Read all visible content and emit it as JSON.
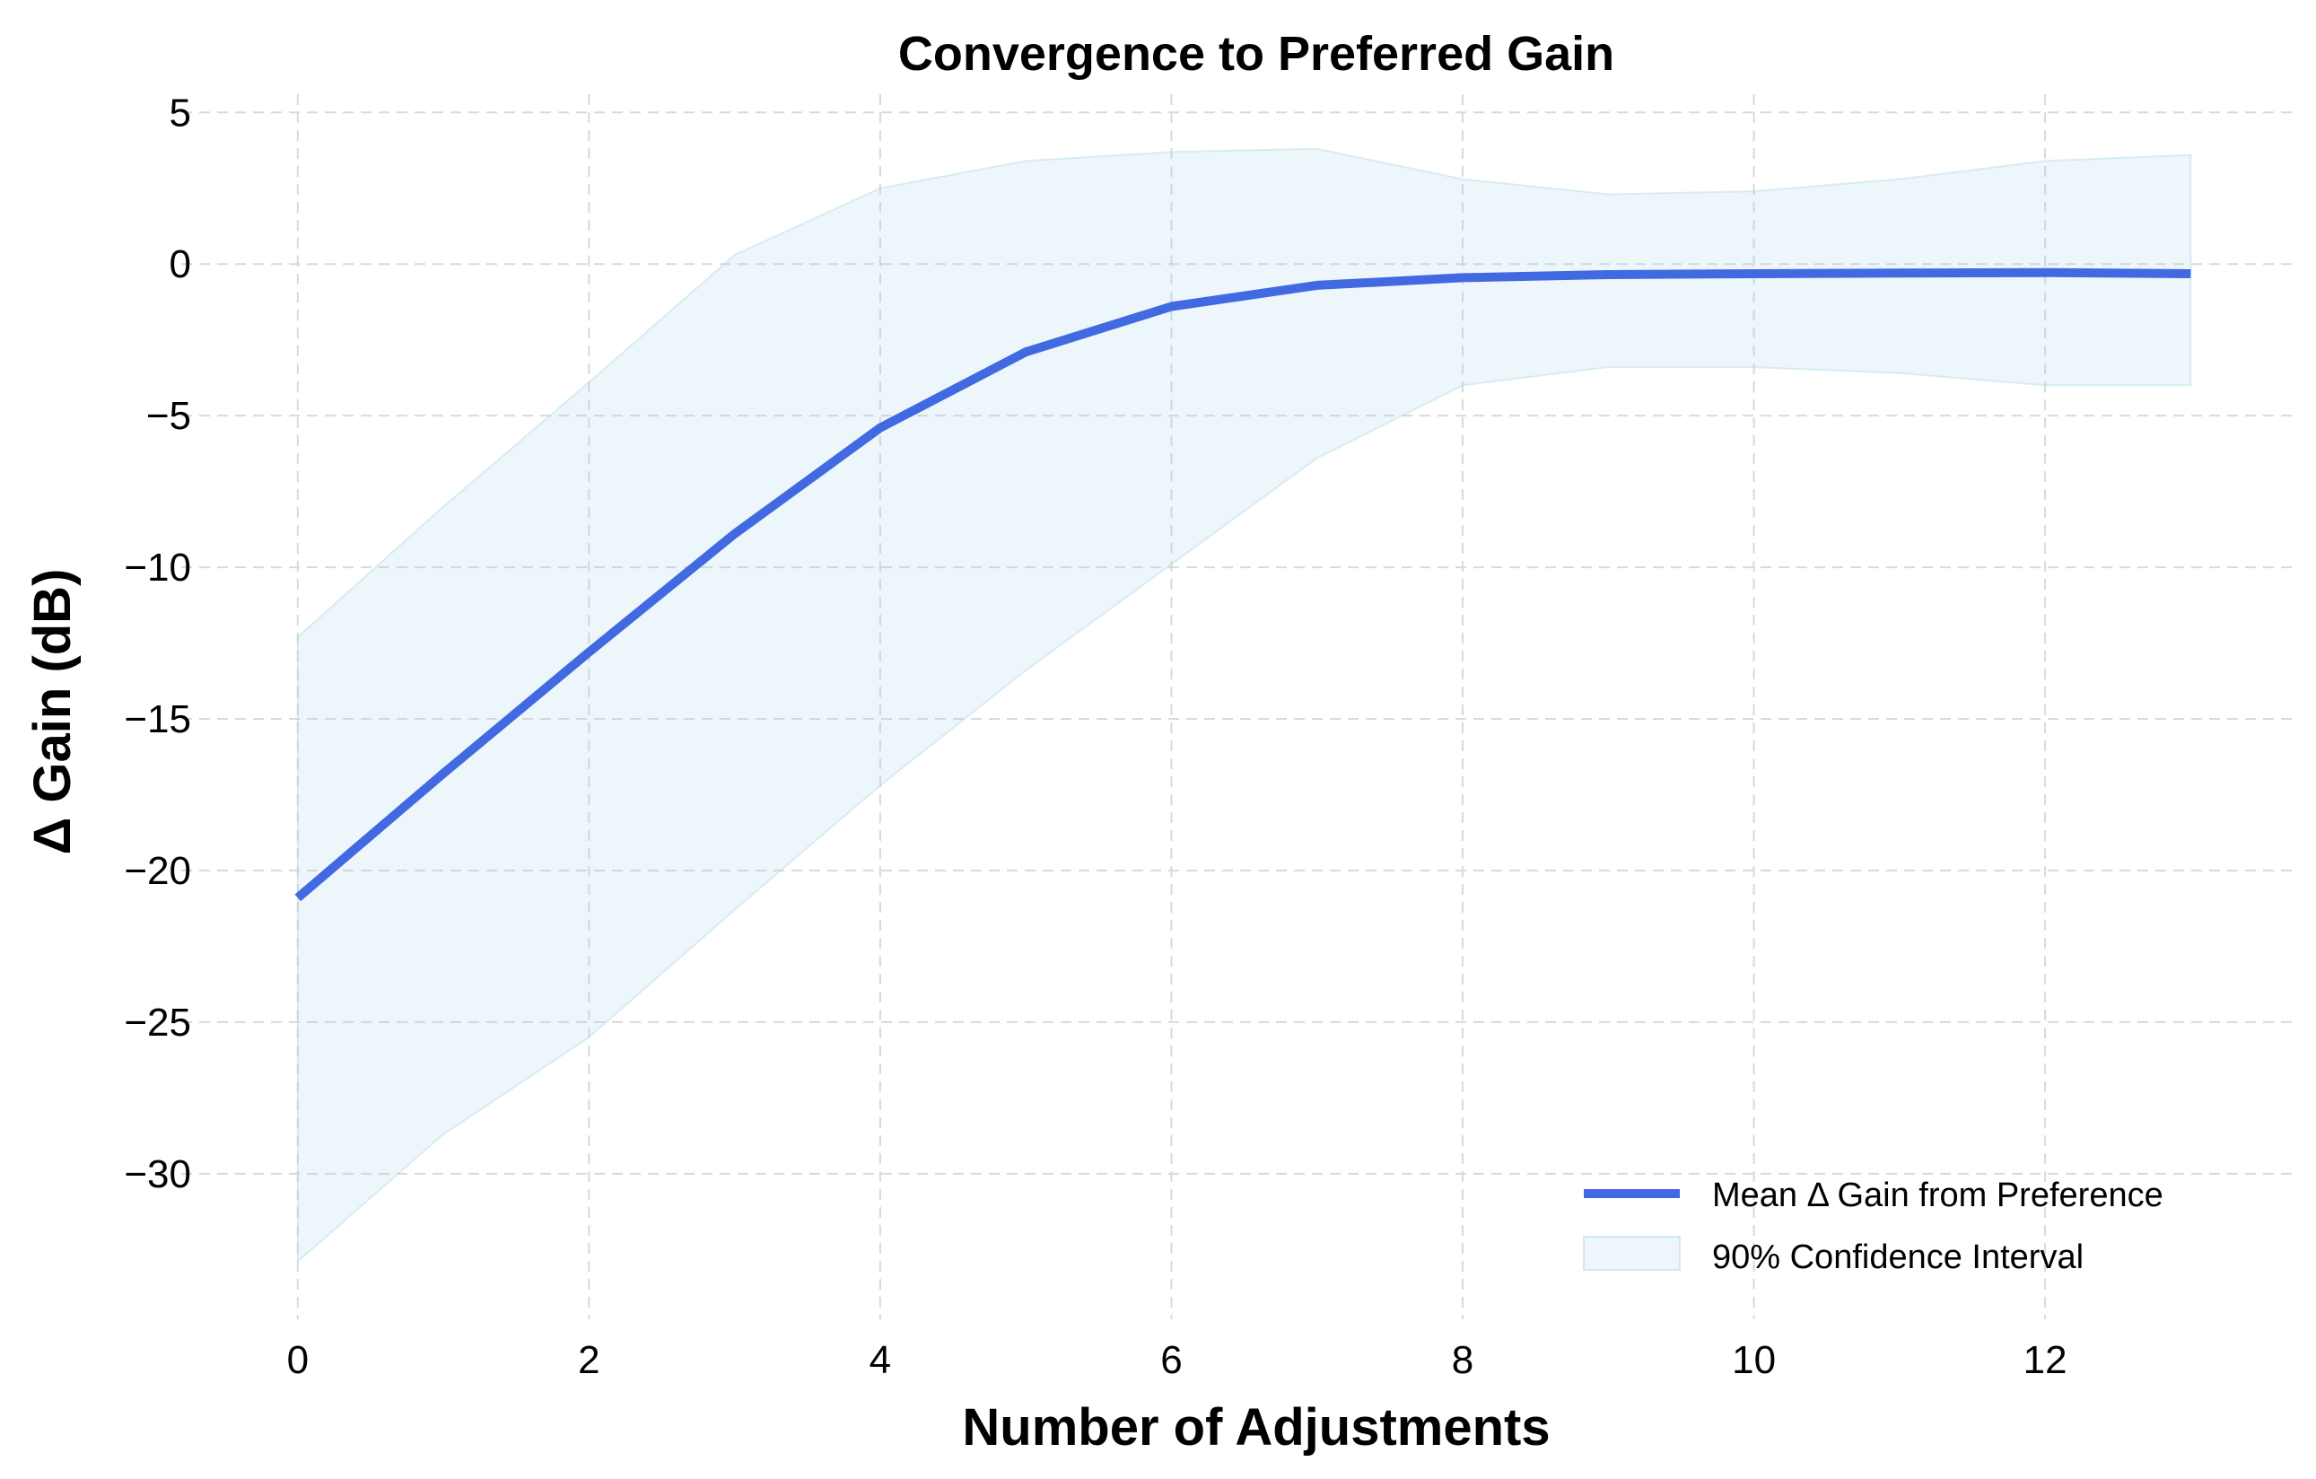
{
  "chart_data": {
    "type": "line",
    "title": "Convergence to Preferred Gain",
    "xlabel": "Number of Adjustments",
    "ylabel": "Δ Gain (dB)",
    "x": [
      0,
      1,
      2,
      3,
      4,
      5,
      6,
      7,
      8,
      9,
      10,
      11,
      12,
      13
    ],
    "xlim": [
      -0.8,
      13.7
    ],
    "ylim": [
      -34.8,
      5.6
    ],
    "xticks": [
      0,
      2,
      4,
      6,
      8,
      10,
      12
    ],
    "yticks": [
      5,
      0,
      -5,
      -10,
      -15,
      -20,
      -25,
      -30
    ],
    "xtick_labels": [
      "0",
      "2",
      "4",
      "6",
      "8",
      "10",
      "12"
    ],
    "ytick_labels": [
      "5",
      "0",
      "−5",
      "−10",
      "−15",
      "−20",
      "−25",
      "−30"
    ],
    "grid": true,
    "legend_position": "bottom-right",
    "series": [
      {
        "name": "Mean Δ Gain from Preference",
        "kind": "line",
        "color": "#4169e1",
        "values": [
          -20.9,
          -16.8,
          -12.8,
          -8.9,
          -5.4,
          -2.9,
          -1.4,
          -0.7,
          -0.45,
          -0.35,
          -0.32,
          -0.3,
          -0.28,
          -0.32
        ]
      },
      {
        "name": "90% Confidence Interval",
        "kind": "band",
        "color": "#add8e6",
        "lower": [
          -32.9,
          -28.7,
          -25.5,
          -21.3,
          -17.2,
          -13.4,
          -9.9,
          -6.4,
          -4.0,
          -3.4,
          -3.4,
          -3.6,
          -4.0,
          -4.0
        ],
        "upper": [
          -12.3,
          -8.0,
          -3.9,
          0.3,
          2.5,
          3.4,
          3.7,
          3.8,
          2.8,
          2.3,
          2.4,
          2.8,
          3.4,
          3.6
        ]
      }
    ]
  }
}
